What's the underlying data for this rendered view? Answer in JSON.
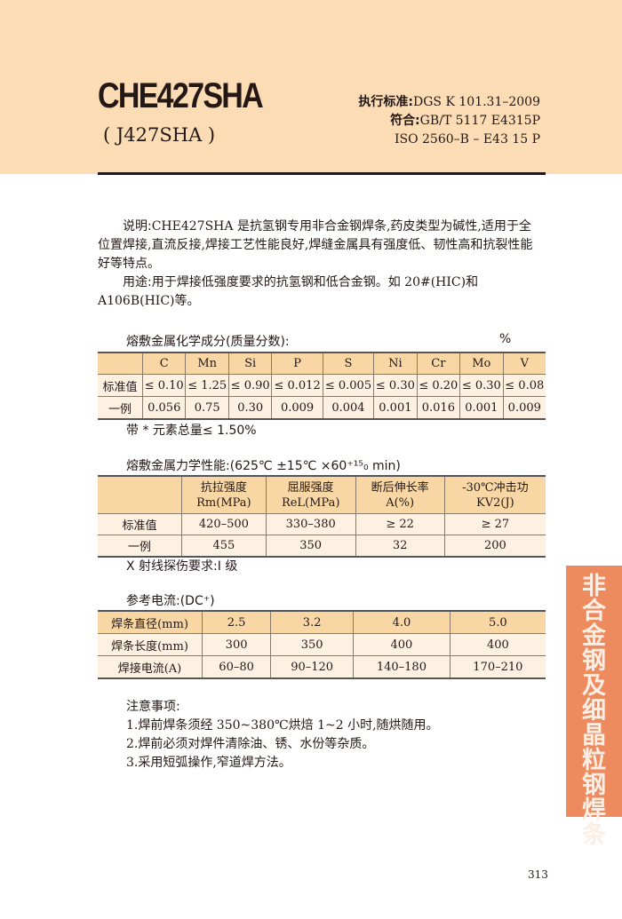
{
  "header": {
    "title": "CHE427SHA",
    "subtitle": "( J427SHA )",
    "standard_label": "执行标准:",
    "standard_value": "DGS K 101.31–2009",
    "conform_label": "符合:",
    "conform_value": "GB/T 5117 E4315P",
    "iso": "ISO 2560–B – E43 15 P"
  },
  "description": {
    "label": "说明:",
    "text": "CHE427SHA 是抗氢钢专用非合金钢焊条,药皮类型为碱性,适用于全位置焊接,直流反接,焊接工艺性能良好,焊缝金属具有强度低、韧性高和抗裂性能好等特点。"
  },
  "usage": {
    "label": "用途:",
    "text": "用于焊接低强度要求的抗氢钢和低合金钢。如 20#(HIC)和 A106B(HIC)等。"
  },
  "chem": {
    "caption": "熔敷金属化学成分(质量分数):",
    "unit": "%",
    "headers": [
      "",
      "C",
      "Mn",
      "Si",
      "P",
      "S",
      "Ni",
      "Cr",
      "Mo",
      "V"
    ],
    "rows": [
      [
        "标准值",
        "≤ 0.10",
        "≤ 1.25",
        "≤ 0.90",
        "≤ 0.012",
        "≤ 0.005",
        "≤ 0.30",
        "≤ 0.20",
        "≤ 0.30",
        "≤ 0.08"
      ],
      [
        "一例",
        "0.056",
        "0.75",
        "0.30",
        "0.009",
        "0.004",
        "0.001",
        "0.016",
        "0.001",
        "0.009"
      ]
    ],
    "footnote": "带 * 元素总量≤ 1.50%"
  },
  "mech": {
    "caption": "熔敷金属力学性能:(625℃ ±15℃ ×60⁺¹⁵₀ min)",
    "headers": [
      [
        "",
        ""
      ],
      [
        "抗拉强度",
        "Rm(MPa)"
      ],
      [
        "屈服强度",
        "ReL(MPa)"
      ],
      [
        "断后伸长率",
        "A(%)"
      ],
      [
        "-30℃冲击功",
        "KV2(J)"
      ]
    ],
    "rows": [
      [
        "标准值",
        "420–500",
        "330–380",
        "≥ 22",
        "≥ 27"
      ],
      [
        "一例",
        "455",
        "350",
        "32",
        "200"
      ]
    ],
    "footnote": "X 射线探伤要求:I 级"
  },
  "current": {
    "caption": "参考电流:(DC⁺)",
    "rows": [
      [
        "焊条直径(mm)",
        "2.5",
        "3.2",
        "4.0",
        "5.0"
      ],
      [
        "焊条长度(mm)",
        "300",
        "350",
        "400",
        "400"
      ],
      [
        "焊接电流(A)",
        "60–80",
        "90–120",
        "140–180",
        "170–210"
      ]
    ]
  },
  "notes": {
    "title": "注意事项:",
    "items": [
      "1.焊前焊条须经 350~380℃烘焙 1~2 小时,随烘随用。",
      "2.焊前必须对焊件清除油、锈、水份等杂质。",
      "3.采用短弧操作,窄道焊方法。"
    ]
  },
  "side_tab": "非合金钢及细晶粒钢焊条",
  "page_number": "313",
  "colors": {
    "header_bg": "#fcdcb4",
    "table_header": "#f9d7a5",
    "side_tab": "#ee8b5e"
  }
}
